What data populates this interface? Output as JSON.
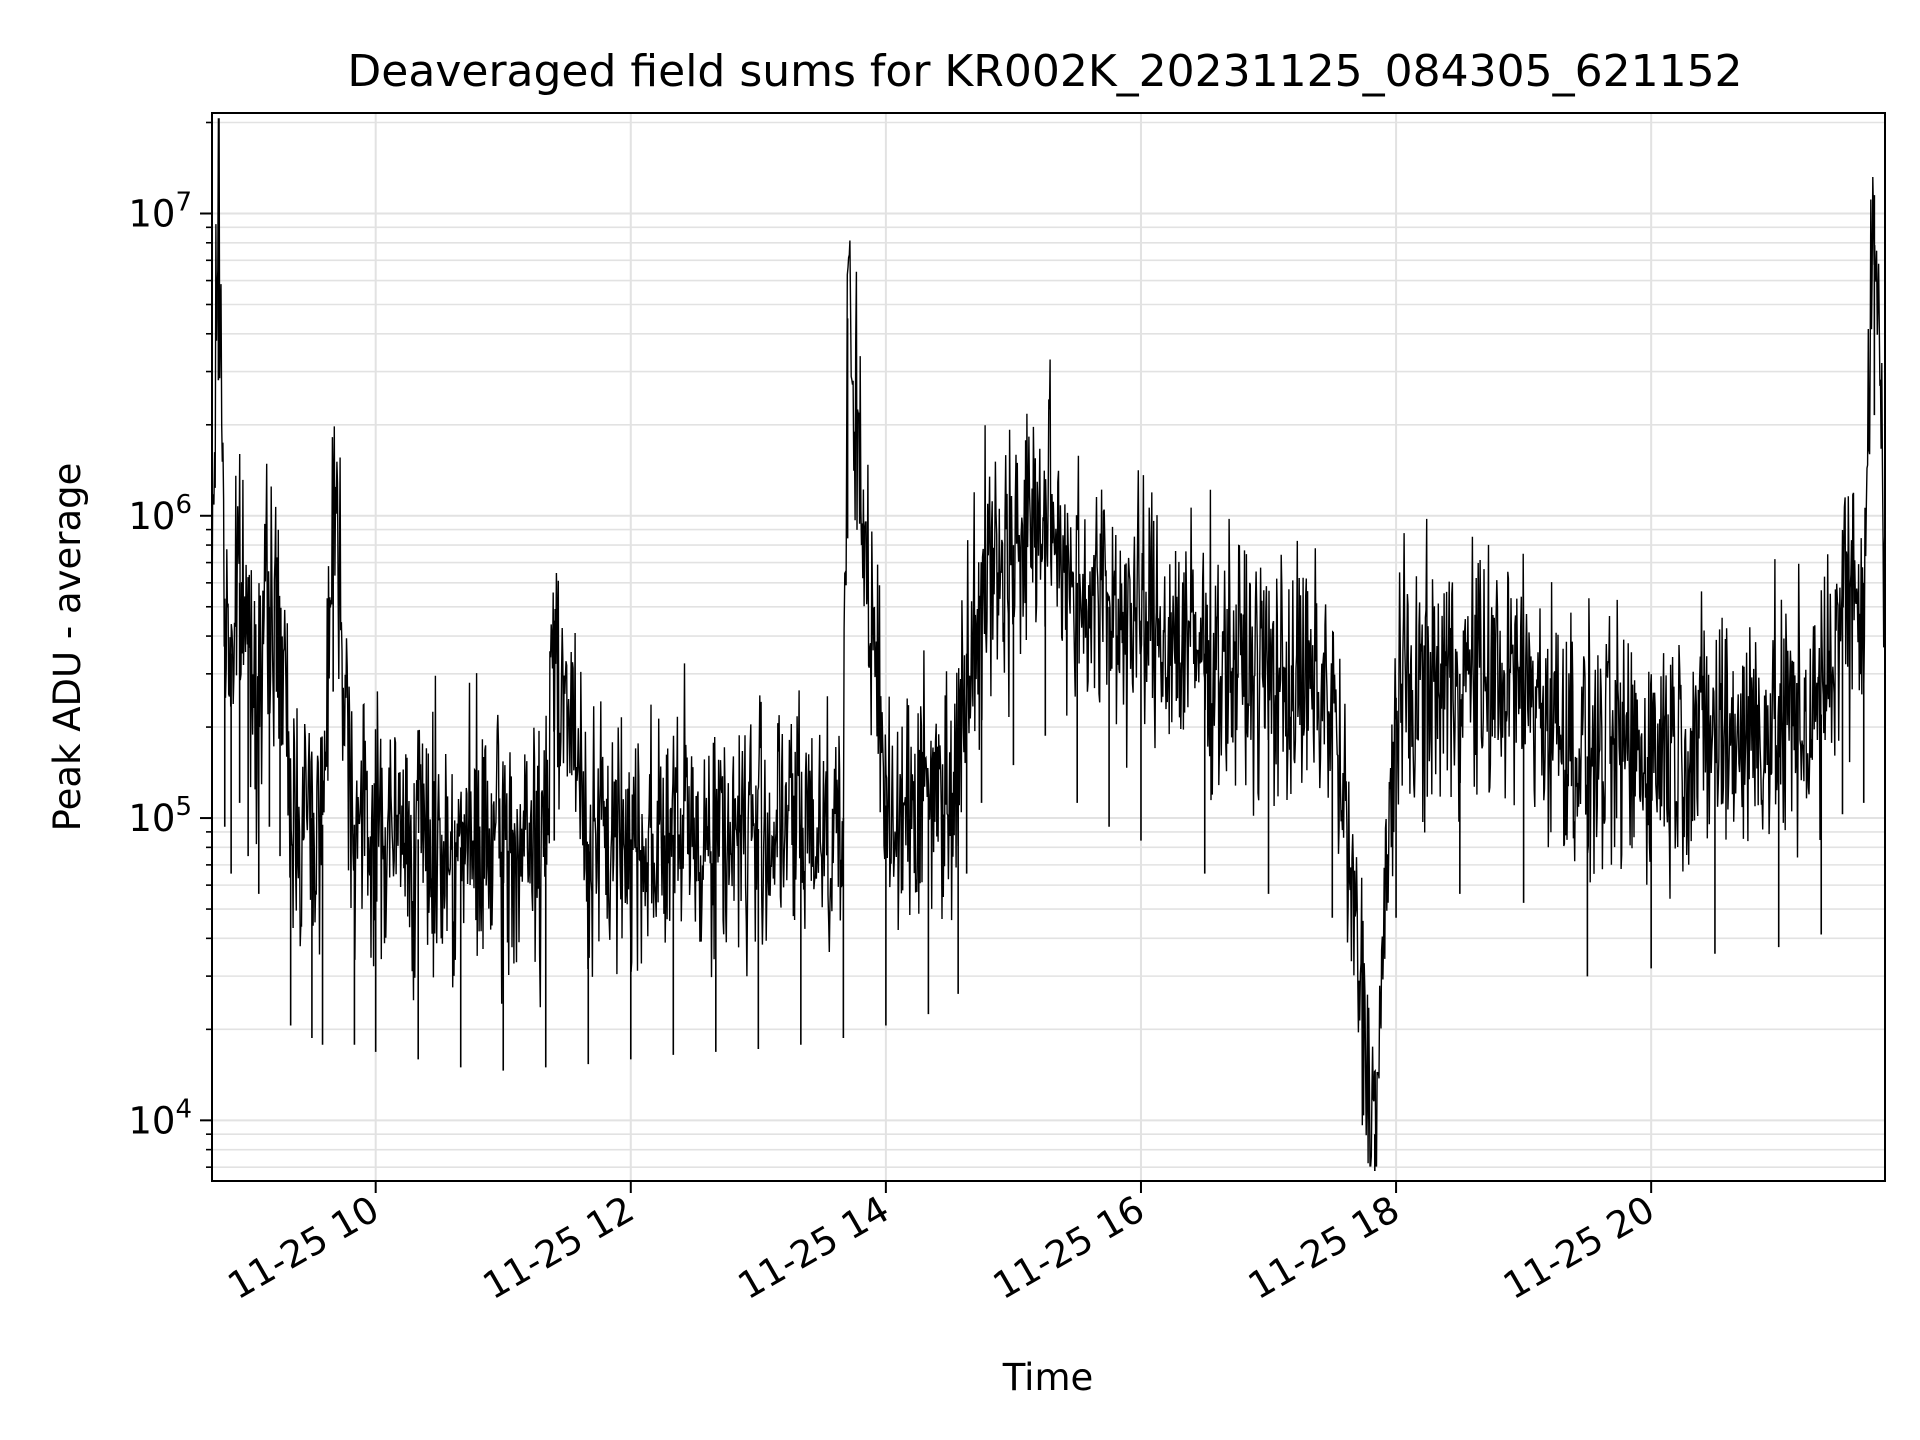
{
  "chart_data": {
    "type": "line",
    "title": "Deaveraged field sums for KR002K_20231125_084305_621152",
    "xlabel": "Time",
    "ylabel": "Peak ADU - average",
    "xlim": [
      "2023-11-25 08:43",
      "2023-11-25 21:50"
    ],
    "yscale": "log",
    "ylim": [
      6300,
      21500000
    ],
    "grid": true,
    "line_color": "#000000",
    "x_ticks": [
      {
        "t": "2023-11-25 10:00",
        "label": "11-25 10"
      },
      {
        "t": "2023-11-25 12:00",
        "label": "11-25 12"
      },
      {
        "t": "2023-11-25 14:00",
        "label": "11-25 14"
      },
      {
        "t": "2023-11-25 16:00",
        "label": "11-25 16"
      },
      {
        "t": "2023-11-25 18:00",
        "label": "11-25 18"
      },
      {
        "t": "2023-11-25 20:00",
        "label": "11-25 20"
      }
    ],
    "y_ticks": [
      {
        "value": 10000,
        "base": "10",
        "exp": "4"
      },
      {
        "value": 100000,
        "base": "10",
        "exp": "5"
      },
      {
        "value": 1000000,
        "base": "10",
        "exp": "6"
      },
      {
        "value": 10000000,
        "base": "10",
        "exp": "7"
      }
    ],
    "series": [
      {
        "x": [
          "2023-11-25 08:43",
          "2023-11-25 08:46",
          "2023-11-25 08:49",
          "2023-11-25 08:52",
          "2023-11-25 08:56",
          "2023-11-25 09:00",
          "2023-11-25 09:05",
          "2023-11-25 09:10",
          "2023-11-25 09:15",
          "2023-11-25 09:20",
          "2023-11-25 09:30",
          "2023-11-25 09:35",
          "2023-11-25 09:40",
          "2023-11-25 09:50",
          "2023-11-25 10:00",
          "2023-11-25 10:20",
          "2023-11-25 10:40",
          "2023-11-25 11:00",
          "2023-11-25 11:20",
          "2023-11-25 11:24",
          "2023-11-25 11:40",
          "2023-11-25 12:00",
          "2023-11-25 12:20",
          "2023-11-25 12:40",
          "2023-11-25 13:00",
          "2023-11-25 13:20",
          "2023-11-25 13:40",
          "2023-11-25 13:42",
          "2023-11-25 14:00",
          "2023-11-25 14:20",
          "2023-11-25 14:34",
          "2023-11-25 14:38",
          "2023-11-25 14:45",
          "2023-11-25 15:00",
          "2023-11-25 15:15",
          "2023-11-25 15:30",
          "2023-11-25 15:45",
          "2023-11-25 16:00",
          "2023-11-25 16:30",
          "2023-11-25 17:00",
          "2023-11-25 17:30",
          "2023-11-25 17:50",
          "2023-11-25 18:00",
          "2023-11-25 18:30",
          "2023-11-25 19:00",
          "2023-11-25 19:30",
          "2023-11-25 20:00",
          "2023-11-25 20:30",
          "2023-11-25 21:00",
          "2023-11-25 21:20",
          "2023-11-25 21:30",
          "2023-11-25 21:40",
          "2023-11-25 21:45",
          "2023-11-25 21:50"
        ],
        "y": [
          400000,
          15000000,
          500000,
          350000,
          600000,
          400000,
          300000,
          500000,
          400000,
          110000,
          100000,
          95000,
          1400000,
          95000,
          90000,
          85000,
          80000,
          78000,
          80000,
          450000,
          82000,
          85000,
          88000,
          90000,
          92000,
          95000,
          100000,
          4500000,
          110000,
          120000,
          140000,
          350000,
          600000,
          800000,
          1000000,
          600000,
          500000,
          450000,
          350000,
          300000,
          250000,
          9000,
          250000,
          300000,
          280000,
          160000,
          170000,
          190000,
          200000,
          220000,
          550000,
          600000,
          11500000,
          580000
        ]
      }
    ]
  }
}
